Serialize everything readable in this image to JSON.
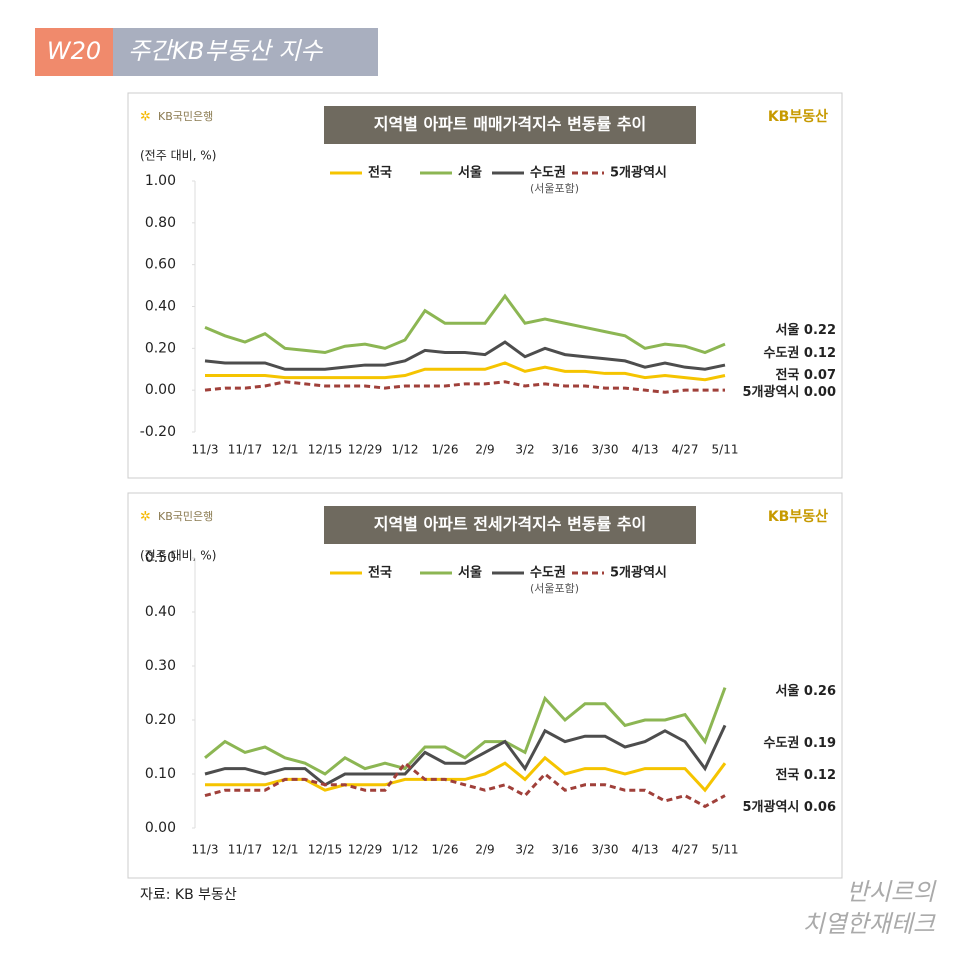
{
  "header": {
    "badge": "W20",
    "title": "주간KB부동산 지수"
  },
  "logos": {
    "bank": "KB국민은행",
    "brand": "KB부동산"
  },
  "chart_data": [
    {
      "type": "line",
      "title": "지역별 아파트 매매가격지수 변동률 추이",
      "y_label": "(전주 대비, %)",
      "legend": "top",
      "categories": [
        "11/3",
        null,
        "11/17",
        null,
        "12/1",
        null,
        "12/15",
        null,
        "12/29",
        null,
        "1/12",
        null,
        "1/26",
        null,
        "2/9",
        null,
        "3/2",
        null,
        "3/16",
        null,
        "3/30",
        null,
        "4/13",
        null,
        "4/27",
        null,
        "5/11"
      ],
      "series": [
        {
          "name": "전국",
          "color": "#f5c400",
          "values": [
            0.07,
            0.07,
            0.07,
            0.07,
            0.06,
            0.06,
            0.06,
            0.06,
            0.06,
            0.06,
            0.07,
            0.1,
            0.1,
            0.1,
            0.1,
            0.13,
            0.09,
            0.11,
            0.09,
            0.09,
            0.08,
            0.08,
            0.06,
            0.07,
            0.06,
            0.05,
            0.07
          ],
          "value_labels": [
            null,
            null,
            null,
            null,
            null,
            null,
            null,
            null,
            null,
            null,
            null,
            null,
            null,
            null,
            null,
            null,
            null,
            null,
            null,
            null,
            null,
            null,
            null,
            null,
            null,
            null,
            "0.07"
          ]
        },
        {
          "name": "서울",
          "color": "#8cb653",
          "values": [
            0.3,
            0.26,
            0.23,
            0.27,
            0.2,
            0.19,
            0.18,
            0.21,
            0.22,
            0.2,
            0.24,
            0.38,
            0.32,
            0.32,
            0.32,
            0.45,
            0.32,
            0.34,
            0.32,
            0.3,
            0.28,
            0.26,
            0.2,
            0.22,
            0.21,
            0.18,
            0.22
          ]
        },
        {
          "name": "수도권",
          "note": "(서울포함)",
          "color": "#4d4d4d",
          "values": [
            0.14,
            0.13,
            0.13,
            0.13,
            0.1,
            0.1,
            0.1,
            0.11,
            0.12,
            0.12,
            0.14,
            0.19,
            0.18,
            0.18,
            0.17,
            0.23,
            0.16,
            0.2,
            0.17,
            0.16,
            0.15,
            0.14,
            0.11,
            0.13,
            0.11,
            0.1,
            0.12
          ]
        },
        {
          "name": "5개광역시",
          "color": "#a0403a",
          "dashed": true,
          "values": [
            0,
            0.01,
            0.01,
            0.02,
            0.04,
            0.03,
            0.02,
            0.02,
            0.02,
            0.01,
            0.02,
            0.02,
            0.02,
            0.03,
            0.03,
            0.04,
            0.02,
            0.03,
            0.02,
            0.02,
            0.01,
            0.01,
            0,
            -0.01,
            0,
            0,
            0
          ],
          "value_labels": [
            null,
            null,
            null,
            null,
            null,
            null,
            null,
            null,
            null,
            null,
            null,
            null,
            null,
            null,
            null,
            null,
            null,
            null,
            null,
            null,
            null,
            null,
            null,
            null,
            null,
            null,
            "0.00"
          ]
        }
      ],
      "ylim": [
        -0.2,
        1.0
      ],
      "yticks": [
        {
          "value": -0.2,
          "label": "-0.20"
        },
        {
          "value": 0,
          "label": "0.00"
        },
        {
          "value": 0.2,
          "label": "0.20"
        },
        {
          "value": 0.4,
          "label": "0.40"
        },
        {
          "value": 0.6,
          "label": "0.60"
        },
        {
          "value": 0.8,
          "label": "0.80"
        },
        {
          "value": 1.0,
          "label": "1.00"
        }
      ]
    },
    {
      "type": "line",
      "title": "지역별 아파트 전세가격지수 변동률 추이",
      "y_label": "(전주 대비, %)",
      "legend": "top",
      "categories": [
        "11/3",
        null,
        "11/17",
        null,
        "12/1",
        null,
        "12/15",
        null,
        "12/29",
        null,
        "1/12",
        null,
        "1/26",
        null,
        "2/9",
        null,
        "3/2",
        null,
        "3/16",
        null,
        "3/30",
        null,
        "4/13",
        null,
        "4/27",
        null,
        "5/11"
      ],
      "series": [
        {
          "name": "전국",
          "color": "#f5c400",
          "values": [
            0.08,
            0.08,
            0.08,
            0.08,
            0.09,
            0.09,
            0.07,
            0.08,
            0.08,
            0.08,
            0.09,
            0.09,
            0.09,
            0.09,
            0.1,
            0.12,
            0.09,
            0.13,
            0.1,
            0.11,
            0.11,
            0.1,
            0.11,
            0.11,
            0.11,
            0.07,
            0.12
          ]
        },
        {
          "name": "서울",
          "color": "#8cb653",
          "values": [
            0.13,
            0.16,
            0.14,
            0.15,
            0.13,
            0.12,
            0.1,
            0.13,
            0.11,
            0.12,
            0.11,
            0.15,
            0.15,
            0.13,
            0.16,
            0.16,
            0.14,
            0.24,
            0.2,
            0.23,
            0.23,
            0.19,
            0.2,
            0.2,
            0.21,
            0.16,
            0.26
          ]
        },
        {
          "name": "수도권",
          "note": "(서울포함)",
          "color": "#4d4d4d",
          "values": [
            0.1,
            0.11,
            0.11,
            0.1,
            0.11,
            0.11,
            0.08,
            0.1,
            0.1,
            0.1,
            0.1,
            0.14,
            0.12,
            0.12,
            0.14,
            0.16,
            0.11,
            0.18,
            0.16,
            0.17,
            0.17,
            0.15,
            0.16,
            0.18,
            0.16,
            0.11,
            0.19
          ]
        },
        {
          "name": "5개광역시",
          "color": "#a0403a",
          "dashed": true,
          "values": [
            0.06,
            0.07,
            0.07,
            0.07,
            0.09,
            0.09,
            0.08,
            0.08,
            0.07,
            0.07,
            0.12,
            0.09,
            0.09,
            0.08,
            0.07,
            0.08,
            0.06,
            0.1,
            0.07,
            0.08,
            0.08,
            0.07,
            0.07,
            0.05,
            0.06,
            0.04,
            0.06
          ]
        }
      ],
      "ylim": [
        0,
        0.5
      ],
      "yticks": [
        {
          "value": 0,
          "label": "0.00"
        },
        {
          "value": 0.1,
          "label": "0.10"
        },
        {
          "value": 0.2,
          "label": "0.20"
        },
        {
          "value": 0.3,
          "label": "0.30"
        },
        {
          "value": 0.4,
          "label": "0.40"
        },
        {
          "value": 0.5,
          "label": "0.50"
        }
      ]
    }
  ],
  "source": "자료: KB 부동산",
  "watermark": [
    "반시르의",
    "치열한재테크"
  ]
}
